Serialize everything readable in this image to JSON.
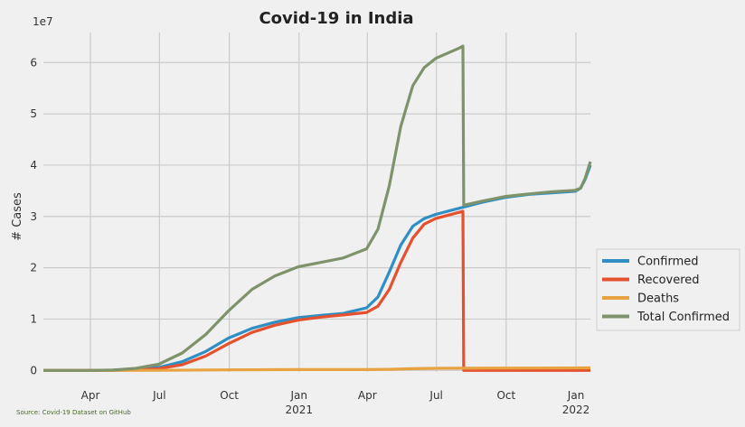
{
  "chart_data": {
    "type": "line",
    "title": "Covid-19 in India",
    "xlabel": "",
    "ylabel": "# Cases",
    "y_multiplier_label": "1e7",
    "source_note": "Source: Covid-19 Dataset on GitHub",
    "x_range": [
      "2020-01-30",
      "2022-01-20"
    ],
    "ylim": [
      -300000,
      65500000
    ],
    "grid": true,
    "legend_position": "right, outside plot, lower",
    "x_ticks": [
      {
        "date": "2020-04-01",
        "label": "Apr",
        "sublabel": ""
      },
      {
        "date": "2020-07-01",
        "label": "Jul",
        "sublabel": ""
      },
      {
        "date": "2020-10-01",
        "label": "Oct",
        "sublabel": ""
      },
      {
        "date": "2021-01-01",
        "label": "Jan",
        "sublabel": "2021"
      },
      {
        "date": "2021-04-01",
        "label": "Apr",
        "sublabel": ""
      },
      {
        "date": "2021-07-01",
        "label": "Jul",
        "sublabel": ""
      },
      {
        "date": "2021-10-01",
        "label": "Oct",
        "sublabel": ""
      },
      {
        "date": "2022-01-01",
        "label": "Jan",
        "sublabel": "2022"
      }
    ],
    "y_ticks": [
      {
        "value": 0,
        "label": "0"
      },
      {
        "value": 10000000,
        "label": "1"
      },
      {
        "value": 20000000,
        "label": "2"
      },
      {
        "value": 30000000,
        "label": "3"
      },
      {
        "value": 40000000,
        "label": "4"
      },
      {
        "value": 50000000,
        "label": "5"
      },
      {
        "value": 60000000,
        "label": "6"
      }
    ],
    "series": [
      {
        "name": "Confirmed",
        "color": "#2f8fc4",
        "points": [
          [
            "2020-01-30",
            0
          ],
          [
            "2020-03-31",
            1500
          ],
          [
            "2020-04-30",
            35000
          ],
          [
            "2020-05-31",
            190000
          ],
          [
            "2020-06-30",
            580000
          ],
          [
            "2020-07-31",
            1700000
          ],
          [
            "2020-08-31",
            3700000
          ],
          [
            "2020-09-30",
            6300000
          ],
          [
            "2020-10-31",
            8200000
          ],
          [
            "2020-11-30",
            9400000
          ],
          [
            "2020-12-31",
            10300000
          ],
          [
            "2021-01-31",
            10750000
          ],
          [
            "2021-02-28",
            11100000
          ],
          [
            "2021-03-31",
            12200000
          ],
          [
            "2021-04-15",
            14300000
          ],
          [
            "2021-04-30",
            19200000
          ],
          [
            "2021-05-15",
            24400000
          ],
          [
            "2021-05-31",
            28100000
          ],
          [
            "2021-06-15",
            29600000
          ],
          [
            "2021-06-30",
            30400000
          ],
          [
            "2021-07-31",
            31600000
          ],
          [
            "2021-08-31",
            32800000
          ],
          [
            "2021-09-30",
            33700000
          ],
          [
            "2021-10-31",
            34300000
          ],
          [
            "2021-11-30",
            34600000
          ],
          [
            "2021-12-31",
            34900000
          ],
          [
            "2022-01-07",
            35500000
          ],
          [
            "2022-01-13",
            37200000
          ],
          [
            "2022-01-20",
            40000000
          ]
        ]
      },
      {
        "name": "Recovered",
        "color": "#e5512f",
        "points": [
          [
            "2020-01-30",
            0
          ],
          [
            "2020-03-31",
            200
          ],
          [
            "2020-04-30",
            8000
          ],
          [
            "2020-05-31",
            90000
          ],
          [
            "2020-06-30",
            350000
          ],
          [
            "2020-07-31",
            1100000
          ],
          [
            "2020-08-31",
            2800000
          ],
          [
            "2020-09-30",
            5200000
          ],
          [
            "2020-10-31",
            7400000
          ],
          [
            "2020-11-30",
            8800000
          ],
          [
            "2020-12-31",
            9800000
          ],
          [
            "2021-01-31",
            10400000
          ],
          [
            "2021-02-28",
            10800000
          ],
          [
            "2021-03-31",
            11300000
          ],
          [
            "2021-04-15",
            12500000
          ],
          [
            "2021-04-30",
            15800000
          ],
          [
            "2021-05-15",
            21000000
          ],
          [
            "2021-05-31",
            25800000
          ],
          [
            "2021-06-15",
            28500000
          ],
          [
            "2021-06-30",
            29600000
          ],
          [
            "2021-07-31",
            30800000
          ],
          [
            "2021-08-05",
            31000000
          ],
          [
            "2021-08-06",
            0
          ],
          [
            "2022-01-20",
            0
          ]
        ]
      },
      {
        "name": "Deaths",
        "color": "#e8a23f",
        "points": [
          [
            "2020-01-30",
            0
          ],
          [
            "2020-06-30",
            17000
          ],
          [
            "2020-09-30",
            100000
          ],
          [
            "2020-12-31",
            149000
          ],
          [
            "2021-03-31",
            163000
          ],
          [
            "2021-04-30",
            208000
          ],
          [
            "2021-05-31",
            331000
          ],
          [
            "2021-06-30",
            400000
          ],
          [
            "2021-07-31",
            424000
          ],
          [
            "2021-10-31",
            458000
          ],
          [
            "2022-01-20",
            488000
          ]
        ]
      },
      {
        "name": "Total Confirmed",
        "color": "#7e936b",
        "points": [
          [
            "2020-01-30",
            0
          ],
          [
            "2020-03-31",
            2500
          ],
          [
            "2020-04-30",
            70000
          ],
          [
            "2020-05-31",
            400000
          ],
          [
            "2020-06-30",
            1200000
          ],
          [
            "2020-07-31",
            3400000
          ],
          [
            "2020-08-31",
            7000000
          ],
          [
            "2020-09-30",
            11600000
          ],
          [
            "2020-10-31",
            15800000
          ],
          [
            "2020-11-30",
            18400000
          ],
          [
            "2020-12-31",
            20200000
          ],
          [
            "2021-01-31",
            21100000
          ],
          [
            "2021-02-28",
            21900000
          ],
          [
            "2021-03-31",
            23700000
          ],
          [
            "2021-04-15",
            27500000
          ],
          [
            "2021-04-30",
            36000000
          ],
          [
            "2021-05-15",
            47500000
          ],
          [
            "2021-05-31",
            55500000
          ],
          [
            "2021-06-15",
            59000000
          ],
          [
            "2021-06-30",
            60800000
          ],
          [
            "2021-07-31",
            62800000
          ],
          [
            "2021-08-05",
            63200000
          ],
          [
            "2021-08-06",
            32200000
          ],
          [
            "2021-08-31",
            33000000
          ],
          [
            "2021-09-30",
            33900000
          ],
          [
            "2021-10-31",
            34400000
          ],
          [
            "2021-11-30",
            34800000
          ],
          [
            "2021-12-31",
            35100000
          ],
          [
            "2022-01-07",
            35500000
          ],
          [
            "2022-01-13",
            37400000
          ],
          [
            "2022-01-20",
            40700000
          ]
        ]
      }
    ]
  }
}
